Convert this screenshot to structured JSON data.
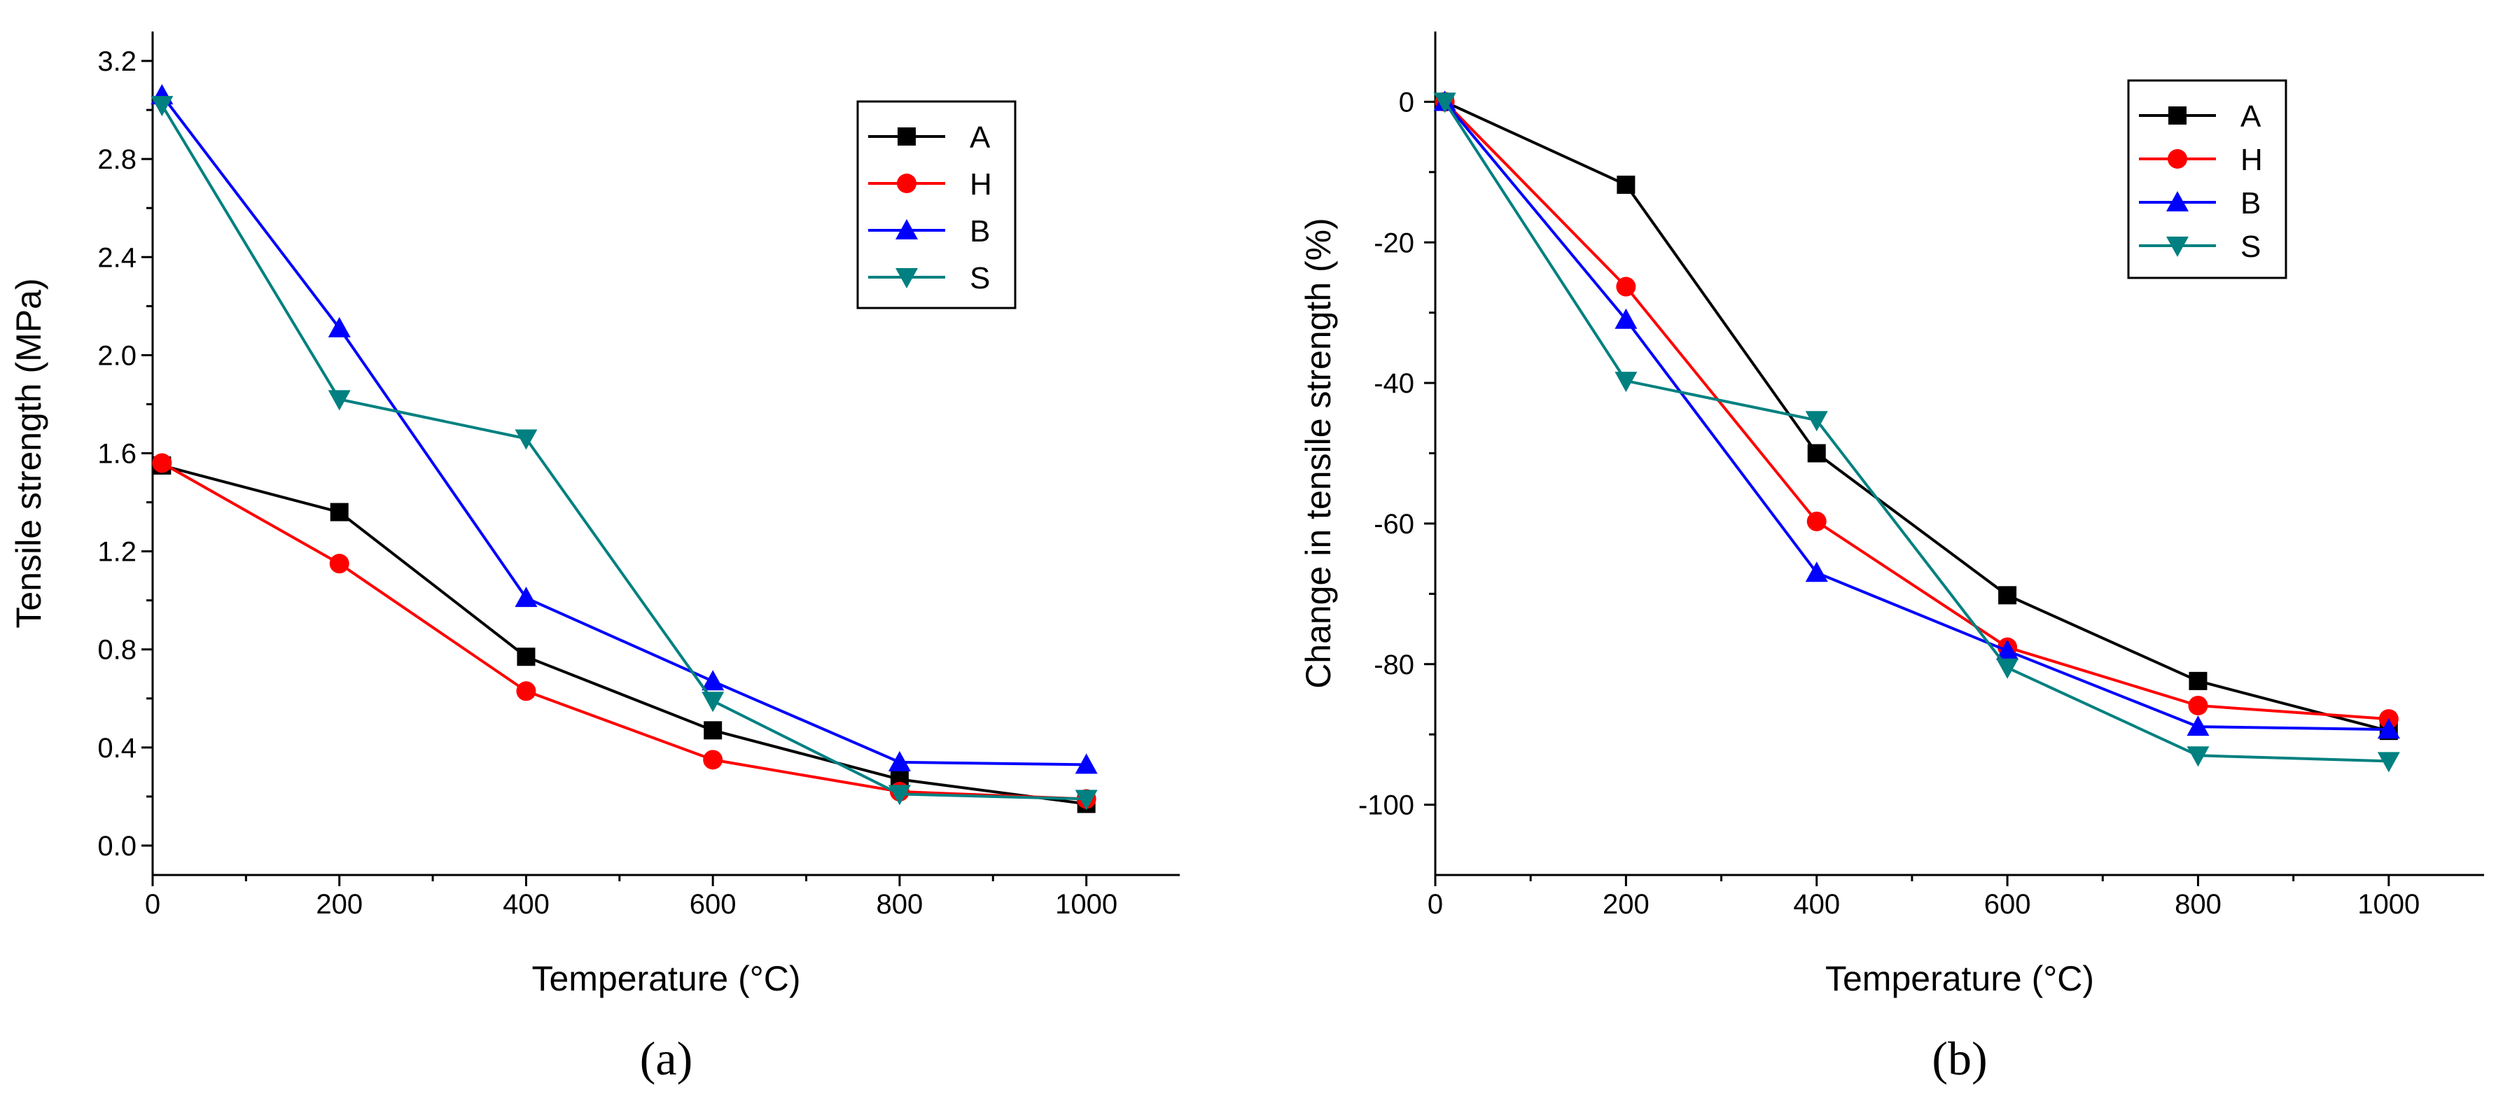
{
  "chart_data": [
    {
      "type": "line",
      "panel_label": "(a)",
      "xlabel": "Temperature (°C)",
      "ylabel": "Tensile strength (MPa)",
      "xlim": [
        0,
        1100
      ],
      "ylim": [
        -0.12,
        3.32
      ],
      "xticks": [
        0,
        200,
        400,
        600,
        800,
        1000
      ],
      "yticks": [
        0.0,
        0.4,
        0.8,
        1.2,
        1.6,
        2.0,
        2.4,
        2.8,
        3.2
      ],
      "ytick_labels": [
        "0.0",
        "0.4",
        "0.8",
        "1.2",
        "1.6",
        "2.0",
        "2.4",
        "2.8",
        "3.2"
      ],
      "grid": false,
      "legend_position": "top-right",
      "x": [
        10,
        200,
        400,
        600,
        800,
        1000
      ],
      "series": [
        {
          "name": "A",
          "color": "#000000",
          "marker": "square",
          "values": [
            1.55,
            1.36,
            0.77,
            0.47,
            0.27,
            0.17
          ]
        },
        {
          "name": "H",
          "color": "#ff0000",
          "marker": "circle",
          "values": [
            1.56,
            1.15,
            0.63,
            0.35,
            0.22,
            0.19
          ]
        },
        {
          "name": "B",
          "color": "#0000ff",
          "marker": "triangle-up",
          "values": [
            3.06,
            2.11,
            1.01,
            0.67,
            0.34,
            0.33
          ]
        },
        {
          "name": "S",
          "color": "#008080",
          "marker": "triangle-down",
          "values": [
            3.02,
            1.82,
            1.66,
            0.59,
            0.21,
            0.19
          ]
        }
      ]
    },
    {
      "type": "line",
      "panel_label": "(b)",
      "xlabel": "Temperature (°C)",
      "ylabel": "Change in tensile strength (%)",
      "xlim": [
        0,
        1100
      ],
      "ylim": [
        -110,
        10
      ],
      "xticks": [
        0,
        200,
        400,
        600,
        800,
        1000
      ],
      "yticks": [
        0,
        -20,
        -40,
        -60,
        -80,
        -100
      ],
      "ytick_labels": [
        "0",
        "-20",
        "-40",
        "-60",
        "-80",
        "-100"
      ],
      "grid": false,
      "legend_position": "top-right",
      "x": [
        10,
        200,
        400,
        600,
        800,
        1000
      ],
      "series": [
        {
          "name": "A",
          "color": "#000000",
          "marker": "square",
          "values": [
            0,
            -11.8,
            -50.0,
            -70.2,
            -82.4,
            -89.5
          ]
        },
        {
          "name": "H",
          "color": "#ff0000",
          "marker": "circle",
          "values": [
            0,
            -26.3,
            -59.7,
            -77.6,
            -85.9,
            -87.8
          ]
        },
        {
          "name": "B",
          "color": "#0000ff",
          "marker": "triangle-up",
          "values": [
            0,
            -31.0,
            -67.0,
            -78.1,
            -88.9,
            -89.3
          ]
        },
        {
          "name": "S",
          "color": "#008080",
          "marker": "triangle-down",
          "values": [
            0,
            -39.7,
            -45.3,
            -80.5,
            -93.0,
            -93.8
          ]
        }
      ]
    }
  ]
}
